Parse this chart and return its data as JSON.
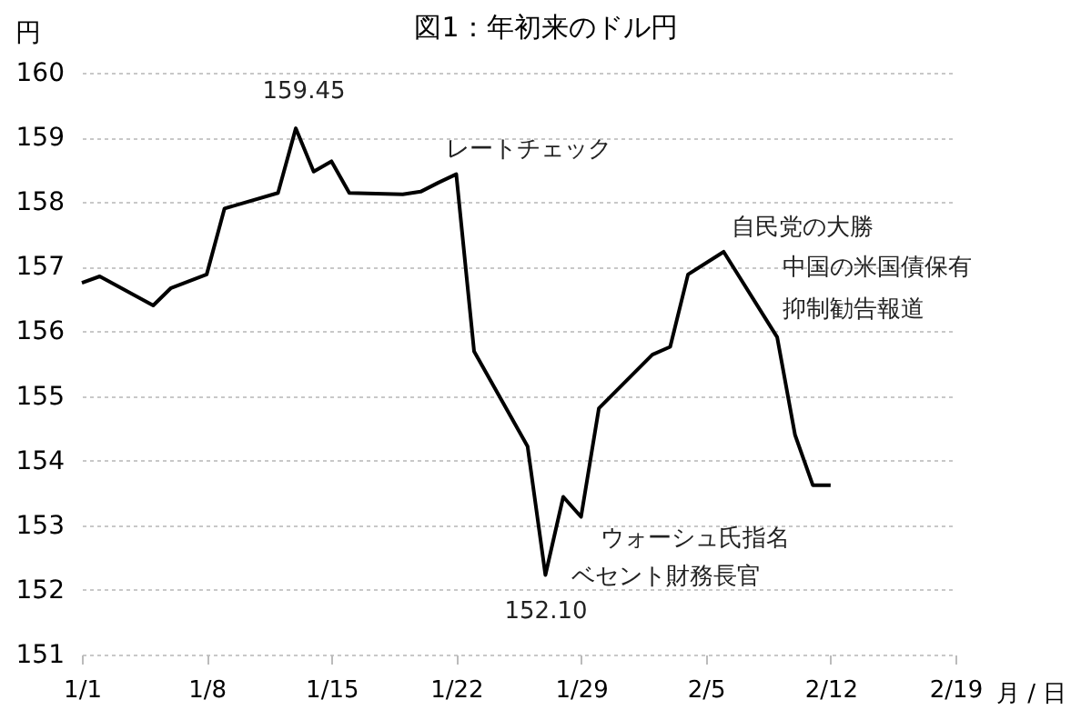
{
  "chart_data": {
    "type": "line",
    "title": "図1：年初来のドル円",
    "xlabel": "月 / 日",
    "ylabel": "円",
    "x": [
      "--01-01",
      "--01-02",
      "--01-05",
      "--01-06",
      "--01-08",
      "--01-09",
      "--01-12",
      "--01-13",
      "--01-14",
      "--01-15",
      "--01-16",
      "--01-19",
      "--01-20",
      "--01-21",
      "--01-22",
      "--01-23",
      "--01-26",
      "--01-27",
      "--01-28",
      "--01-29",
      "--01-30",
      "--02-02",
      "--02-03",
      "--02-04",
      "--02-06",
      "--02-09",
      "--02-10",
      "--02-11",
      "--02-12"
    ],
    "series": [
      {
        "color": "#000000",
        "values": [
          156.75,
          156.85,
          156.4,
          156.67,
          156.88,
          157.9,
          158.14,
          159.14,
          158.47,
          158.63,
          158.14,
          158.12,
          158.16,
          158.3,
          158.43,
          155.69,
          154.22,
          152.23,
          153.44,
          153.13,
          154.81,
          155.64,
          155.76,
          156.88,
          157.23,
          155.91,
          154.4,
          153.62,
          153.62
        ]
      }
    ],
    "xlim": [
      "--01-01",
      "--02-19"
    ],
    "xticks": [
      {
        "value": "--01-01",
        "label": "1/1"
      },
      {
        "value": "--01-08",
        "label": "1/8"
      },
      {
        "value": "--01-15",
        "label": "1/15"
      },
      {
        "value": "--01-22",
        "label": "1/22"
      },
      {
        "value": "--01-29",
        "label": "1/29"
      },
      {
        "value": "--02-05",
        "label": "2/5"
      },
      {
        "value": "--02-12",
        "label": "2/12"
      },
      {
        "value": "--02-19",
        "label": "2/19"
      }
    ],
    "ylim": [
      151,
      160
    ],
    "yticks": [
      151,
      152,
      153,
      154,
      155,
      156,
      157,
      158,
      159,
      160
    ],
    "grid": "y",
    "marker": "none",
    "line_style": "solid",
    "annotations": [
      "159.45",
      "152.10",
      "レートチェック",
      "自民党の大勝",
      "中国の米国債保有",
      "抑制勧告報道",
      "ウォーシュ氏指名",
      "ベセント財務長官"
    ]
  }
}
